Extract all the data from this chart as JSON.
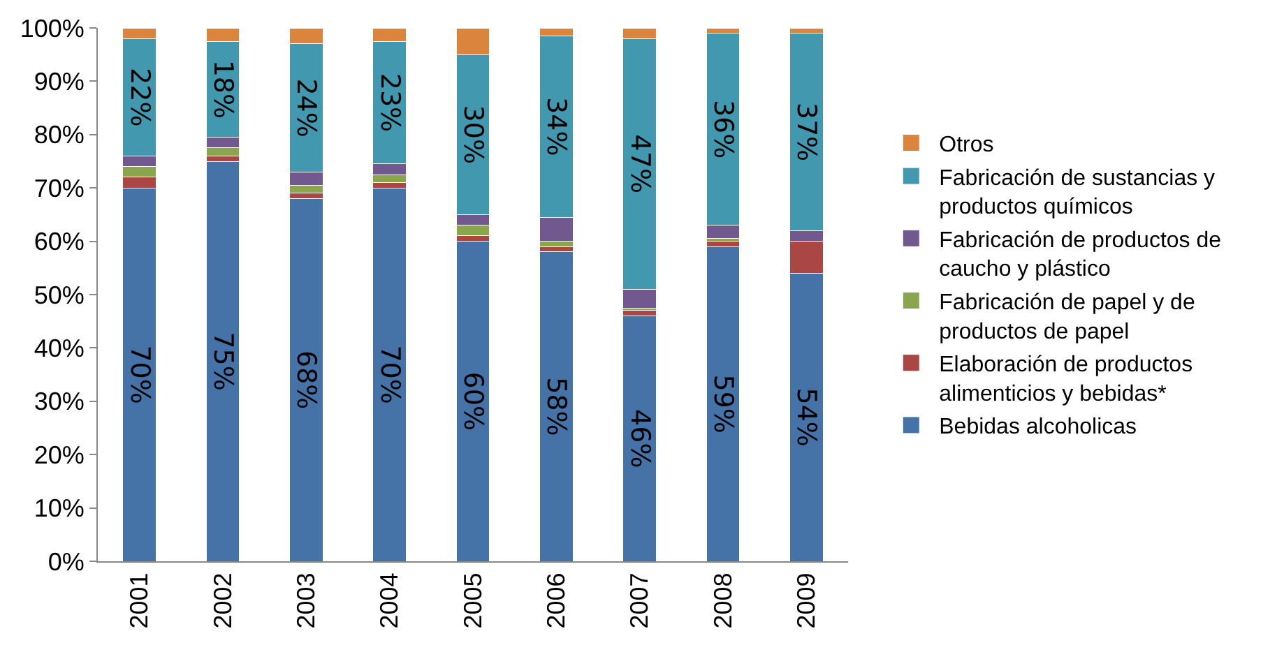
{
  "chart_data": {
    "type": "bar",
    "stacked": true,
    "categories": [
      "2001",
      "2002",
      "2003",
      "2004",
      "2005",
      "2006",
      "2007",
      "2008",
      "2009"
    ],
    "series": [
      {
        "name": "Bebidas alcoholicas",
        "color": "#4572a7",
        "values": [
          70,
          75,
          68,
          70,
          60,
          58,
          46,
          59,
          54
        ],
        "value_labels": [
          "70%",
          "75%",
          "68%",
          "70%",
          "60%",
          "58%",
          "46%",
          "59%",
          "54%"
        ]
      },
      {
        "name": "Elaboración de productos alimenticios y bebidas*",
        "color": "#aa4643",
        "values": [
          2,
          1,
          1,
          1,
          1,
          1,
          1,
          1,
          6
        ]
      },
      {
        "name": "Fabricación de papel y de productos de papel",
        "color": "#89a54e",
        "values": [
          2,
          1.5,
          1.5,
          1.5,
          2,
          1,
          0.5,
          0.5,
          0
        ]
      },
      {
        "name": "Fabricación de productos de caucho y plástico",
        "color": "#71588f",
        "values": [
          2,
          2,
          2.5,
          2,
          2,
          4.5,
          3.5,
          2.5,
          2
        ]
      },
      {
        "name": "Fabricación de sustancias y productos químicos",
        "color": "#4198af",
        "values": [
          22,
          18,
          24,
          23,
          30,
          34,
          47,
          36,
          37
        ],
        "value_labels": [
          "22%",
          "18%",
          "24%",
          "23%",
          "30%",
          "34%",
          "47%",
          "36%",
          "37%"
        ]
      },
      {
        "name": "Otros",
        "color": "#db843d",
        "values": [
          2,
          2.5,
          3,
          2.5,
          5,
          1.5,
          2,
          1,
          1
        ]
      }
    ],
    "ylim": [
      0,
      100
    ],
    "yticks": [
      {
        "value": 0,
        "label": "0%"
      },
      {
        "value": 10,
        "label": "10%"
      },
      {
        "value": 20,
        "label": "20%"
      },
      {
        "value": 30,
        "label": "30%"
      },
      {
        "value": 40,
        "label": "40%"
      },
      {
        "value": 50,
        "label": "50%"
      },
      {
        "value": 60,
        "label": "60%"
      },
      {
        "value": 70,
        "label": "70%"
      },
      {
        "value": 80,
        "label": "80%"
      },
      {
        "value": 90,
        "label": "90%"
      },
      {
        "value": 100,
        "label": "100%"
      }
    ],
    "grid": false,
    "legend": "right"
  }
}
